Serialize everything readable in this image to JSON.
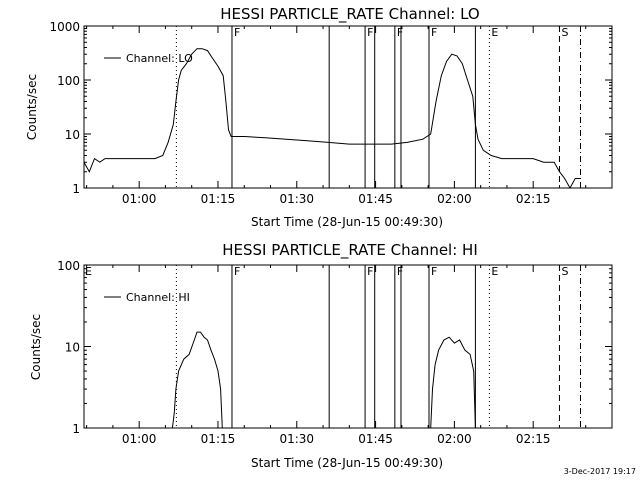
{
  "footer_date": "3-Dec-2017 19:17",
  "chart_data": [
    {
      "type": "line",
      "title": "HESSI PARTICLE_RATE Channel: LO",
      "xlabel": "Start Time (28-Jun-15 00:49:30)",
      "ylabel": "Counts/sec",
      "yscale": "log",
      "xlim": [
        "00:49:30",
        "02:30:00"
      ],
      "ylim": [
        1,
        1000
      ],
      "x_ticks": [
        "01:00",
        "01:15",
        "01:30",
        "01:45",
        "02:00",
        "02:15"
      ],
      "y_ticks": [
        "1",
        "10",
        "100",
        "1000"
      ],
      "legend": "top-left",
      "series": [
        {
          "name": "Channel: LO",
          "x": [
            "00:49:30",
            "00:50:30",
            "00:51:30",
            "00:52:30",
            "00:53:30",
            "00:55:00",
            "00:57:00",
            "00:59:00",
            "01:01:00",
            "01:03:00",
            "01:04:30",
            "01:05:30",
            "01:06:30",
            "01:07:00",
            "01:07:30",
            "01:08:00",
            "01:09:00",
            "01:10:00",
            "01:11:00",
            "01:12:00",
            "01:13:00",
            "01:14:00",
            "01:15:00",
            "01:16:00",
            "01:16:30",
            "01:17:00",
            "01:17:30",
            "01:20:00",
            "01:24:00",
            "01:28:00",
            "01:32:00",
            "01:36:00",
            "01:40:00",
            "01:44:00",
            "01:48:00",
            "01:51:00",
            "01:54:00",
            "01:55:30",
            "01:56:30",
            "01:57:30",
            "01:58:30",
            "01:59:30",
            "02:00:30",
            "02:01:30",
            "02:02:30",
            "02:03:30",
            "02:04:00",
            "02:04:30",
            "02:05:30",
            "02:07:00",
            "02:09:00",
            "02:11:00",
            "02:13:00",
            "02:15:00",
            "02:17:00",
            "02:19:00",
            "02:20:00",
            "02:21:00",
            "02:22:00",
            "02:23:00",
            "02:24:00"
          ],
          "values": [
            3,
            2,
            3.5,
            3,
            3.5,
            3.5,
            3.5,
            3.5,
            3.5,
            3.5,
            4,
            7,
            15,
            40,
            100,
            150,
            200,
            300,
            380,
            380,
            350,
            250,
            180,
            120,
            40,
            12,
            9,
            9,
            8.5,
            8,
            7.5,
            7,
            6.5,
            6.5,
            6.5,
            7,
            8,
            10,
            40,
            120,
            220,
            300,
            280,
            200,
            100,
            50,
            15,
            8,
            5,
            4,
            3.5,
            3.5,
            3.5,
            3.5,
            3,
            3,
            2,
            1.5,
            1,
            1.5,
            1.5
          ]
        }
      ],
      "vertical_lines": [
        {
          "time": "01:07:05",
          "style": "dotted",
          "label": ""
        },
        {
          "time": "01:17:40",
          "style": "solid",
          "label": "F"
        },
        {
          "time": "01:36:10",
          "style": "solid",
          "label": ""
        },
        {
          "time": "01:43:00",
          "style": "solid",
          "label": "F"
        },
        {
          "time": "01:44:50",
          "style": "solid",
          "label": ""
        },
        {
          "time": "01:48:40",
          "style": "solid",
          "label": "F"
        },
        {
          "time": "01:49:50",
          "style": "solid",
          "label": ""
        },
        {
          "time": "01:55:10",
          "style": "solid",
          "label": "F"
        },
        {
          "time": "02:04:00",
          "style": "solid",
          "label": ""
        },
        {
          "time": "02:06:40",
          "style": "dotted",
          "label": "E"
        },
        {
          "time": "02:20:00",
          "style": "dashed",
          "label": "S"
        },
        {
          "time": "02:24:00",
          "style": "dashdot",
          "label": ""
        }
      ],
      "corner_label": ""
    },
    {
      "type": "line",
      "title": "HESSI PARTICLE_RATE Channel: HI",
      "xlabel": "Start Time (28-Jun-15 00:49:30)",
      "ylabel": "Counts/sec",
      "yscale": "log",
      "xlim": [
        "00:49:30",
        "02:30:00"
      ],
      "ylim": [
        1,
        100
      ],
      "x_ticks": [
        "01:00",
        "01:15",
        "01:30",
        "01:45",
        "02:00",
        "02:15"
      ],
      "y_ticks": [
        "1",
        "10",
        "100"
      ],
      "legend": "top-left",
      "series": [
        {
          "name": "Channel: HI",
          "segments": [
            {
              "x": [
                "01:06:20",
                "01:06:40",
                "01:07:00",
                "01:07:30",
                "01:08:30",
                "01:09:30",
                "01:10:30",
                "01:11:00",
                "01:11:40",
                "01:12:20",
                "01:13:00",
                "01:13:40",
                "01:14:20",
                "01:15:00",
                "01:15:30",
                "01:15:50"
              ],
              "values": [
                1,
                1.5,
                3,
                5,
                7,
                8,
                12,
                15,
                15,
                13,
                12,
                9,
                7,
                5,
                3,
                1
              ]
            },
            {
              "x": [
                "01:55:30",
                "01:55:50",
                "01:56:20",
                "01:57:00",
                "01:58:00",
                "01:59:00",
                "02:00:00",
                "02:01:00",
                "02:02:00",
                "02:03:00",
                "02:03:40",
                "02:04:00"
              ],
              "values": [
                1,
                3,
                6,
                9,
                12,
                13,
                11,
                12,
                9,
                8,
                5,
                1
              ]
            }
          ]
        }
      ],
      "vertical_lines": [
        {
          "time": "01:07:05",
          "style": "dotted",
          "label": ""
        },
        {
          "time": "01:17:40",
          "style": "solid",
          "label": "F"
        },
        {
          "time": "01:36:10",
          "style": "solid",
          "label": ""
        },
        {
          "time": "01:43:00",
          "style": "solid",
          "label": "F"
        },
        {
          "time": "01:44:50",
          "style": "solid",
          "label": ""
        },
        {
          "time": "01:48:40",
          "style": "solid",
          "label": "F"
        },
        {
          "time": "01:49:50",
          "style": "solid",
          "label": ""
        },
        {
          "time": "01:55:10",
          "style": "solid",
          "label": "F"
        },
        {
          "time": "02:04:00",
          "style": "solid",
          "label": ""
        },
        {
          "time": "02:06:40",
          "style": "dotted",
          "label": "E"
        },
        {
          "time": "02:20:00",
          "style": "dashed",
          "label": "S"
        },
        {
          "time": "02:24:00",
          "style": "dashdot",
          "label": ""
        }
      ],
      "corner_label": "E"
    }
  ]
}
